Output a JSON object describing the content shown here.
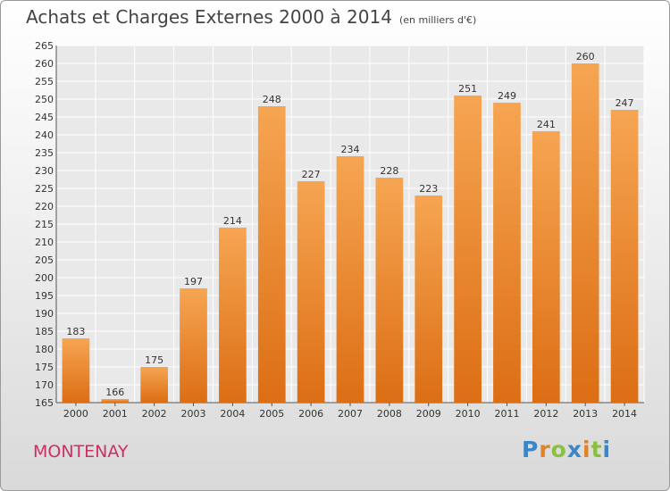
{
  "header": {
    "title": "Achats et Charges Externes 2000 à 2014",
    "unit": "(en milliers d'€)"
  },
  "footer": {
    "city": "MONTENAY",
    "logo": "Proxiti"
  },
  "colors": {
    "bar_light": "#f6a552",
    "bar_dark": "#dc6e14",
    "city": "#cc2f66"
  },
  "chart_data": {
    "type": "bar",
    "title": "Achats et Charges Externes 2000 à 2014",
    "subtitle": "(en milliers d'€)",
    "categories": [
      "2000",
      "2001",
      "2002",
      "2003",
      "2004",
      "2005",
      "2006",
      "2007",
      "2008",
      "2009",
      "2010",
      "2011",
      "2012",
      "2013",
      "2014"
    ],
    "values": [
      183,
      166,
      175,
      197,
      214,
      248,
      227,
      234,
      228,
      223,
      251,
      249,
      241,
      260,
      247
    ],
    "ylim": [
      165,
      265
    ],
    "yticks": [
      165,
      170,
      175,
      180,
      185,
      190,
      195,
      200,
      205,
      210,
      215,
      220,
      225,
      230,
      235,
      240,
      245,
      250,
      255,
      260,
      265
    ],
    "grid": true,
    "xlabel": "",
    "ylabel": ""
  }
}
